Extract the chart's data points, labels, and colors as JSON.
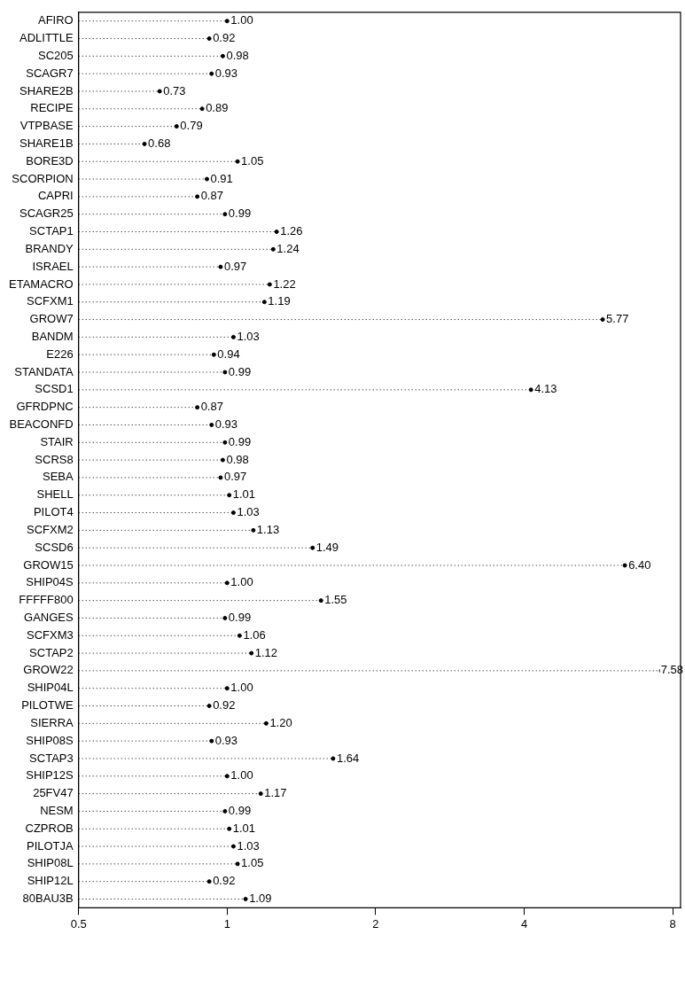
{
  "chart_data": {
    "type": "lollipop",
    "orientation": "horizontal",
    "log": "x",
    "line_style": "dotted",
    "marker": "circle",
    "grid": false,
    "legend": false,
    "categories": [
      "AFIRO",
      "ADLITTLE",
      "SC205",
      "SCAGR7",
      "SHARE2B",
      "RECIPE",
      "VTPBASE",
      "SHARE1B",
      "BORE3D",
      "SCORPION",
      "CAPRI",
      "SCAGR25",
      "SCTAP1",
      "BRANDY",
      "ISRAEL",
      "ETAMACRO",
      "SCFXM1",
      "GROW7",
      "BANDM",
      "E226",
      "STANDATA",
      "SCSD1",
      "GFRDPNC",
      "BEACONFD",
      "STAIR",
      "SCRS8",
      "SEBA",
      "SHELL",
      "PILOT4",
      "SCFXM2",
      "SCSD6",
      "GROW15",
      "SHIP04S",
      "FFFFF800",
      "GANGES",
      "SCFXM3",
      "SCTAP2",
      "GROW22",
      "SHIP04L",
      "PILOTWE",
      "SIERRA",
      "SHIP08S",
      "SCTAP3",
      "SHIP12S",
      "25FV47",
      "NESM",
      "CZPROB",
      "PILOTJA",
      "SHIP08L",
      "SHIP12L",
      "80BAU3B"
    ],
    "values": [
      1.0,
      0.92,
      0.98,
      0.93,
      0.73,
      0.89,
      0.79,
      0.68,
      1.05,
      0.91,
      0.87,
      0.99,
      1.26,
      1.24,
      0.97,
      1.22,
      1.19,
      5.77,
      1.03,
      0.94,
      0.99,
      4.13,
      0.87,
      0.93,
      0.99,
      0.98,
      0.97,
      1.01,
      1.03,
      1.13,
      1.49,
      6.4,
      1.0,
      1.55,
      0.99,
      1.06,
      1.12,
      7.58,
      1.0,
      0.92,
      1.2,
      0.93,
      1.64,
      1.0,
      1.17,
      0.99,
      1.01,
      1.03,
      1.05,
      0.92,
      1.09
    ],
    "value_labels": [
      "1.00",
      "0.92",
      "0.98",
      "0.93",
      "0.73",
      "0.89",
      "0.79",
      "0.68",
      "1.05",
      "0.91",
      "0.87",
      "0.99",
      "1.26",
      "1.24",
      "0.97",
      "1.22",
      "1.19",
      "5.77",
      "1.03",
      "0.94",
      "0.99",
      "4.13",
      "0.87",
      "0.93",
      "0.99",
      "0.98",
      "0.97",
      "1.01",
      "1.03",
      "1.13",
      "1.49",
      "6.40",
      "1.00",
      "1.55",
      "0.99",
      "1.06",
      "1.12",
      "7.58",
      "1.00",
      "0.92",
      "1.20",
      "0.93",
      "1.64",
      "1.00",
      "1.17",
      "0.99",
      "1.01",
      "1.03",
      "1.05",
      "0.92",
      "1.09"
    ],
    "color": "#000000",
    "xlim": [
      0.5,
      8.3
    ],
    "xticks": [
      0.5,
      1,
      2,
      4,
      8
    ]
  }
}
